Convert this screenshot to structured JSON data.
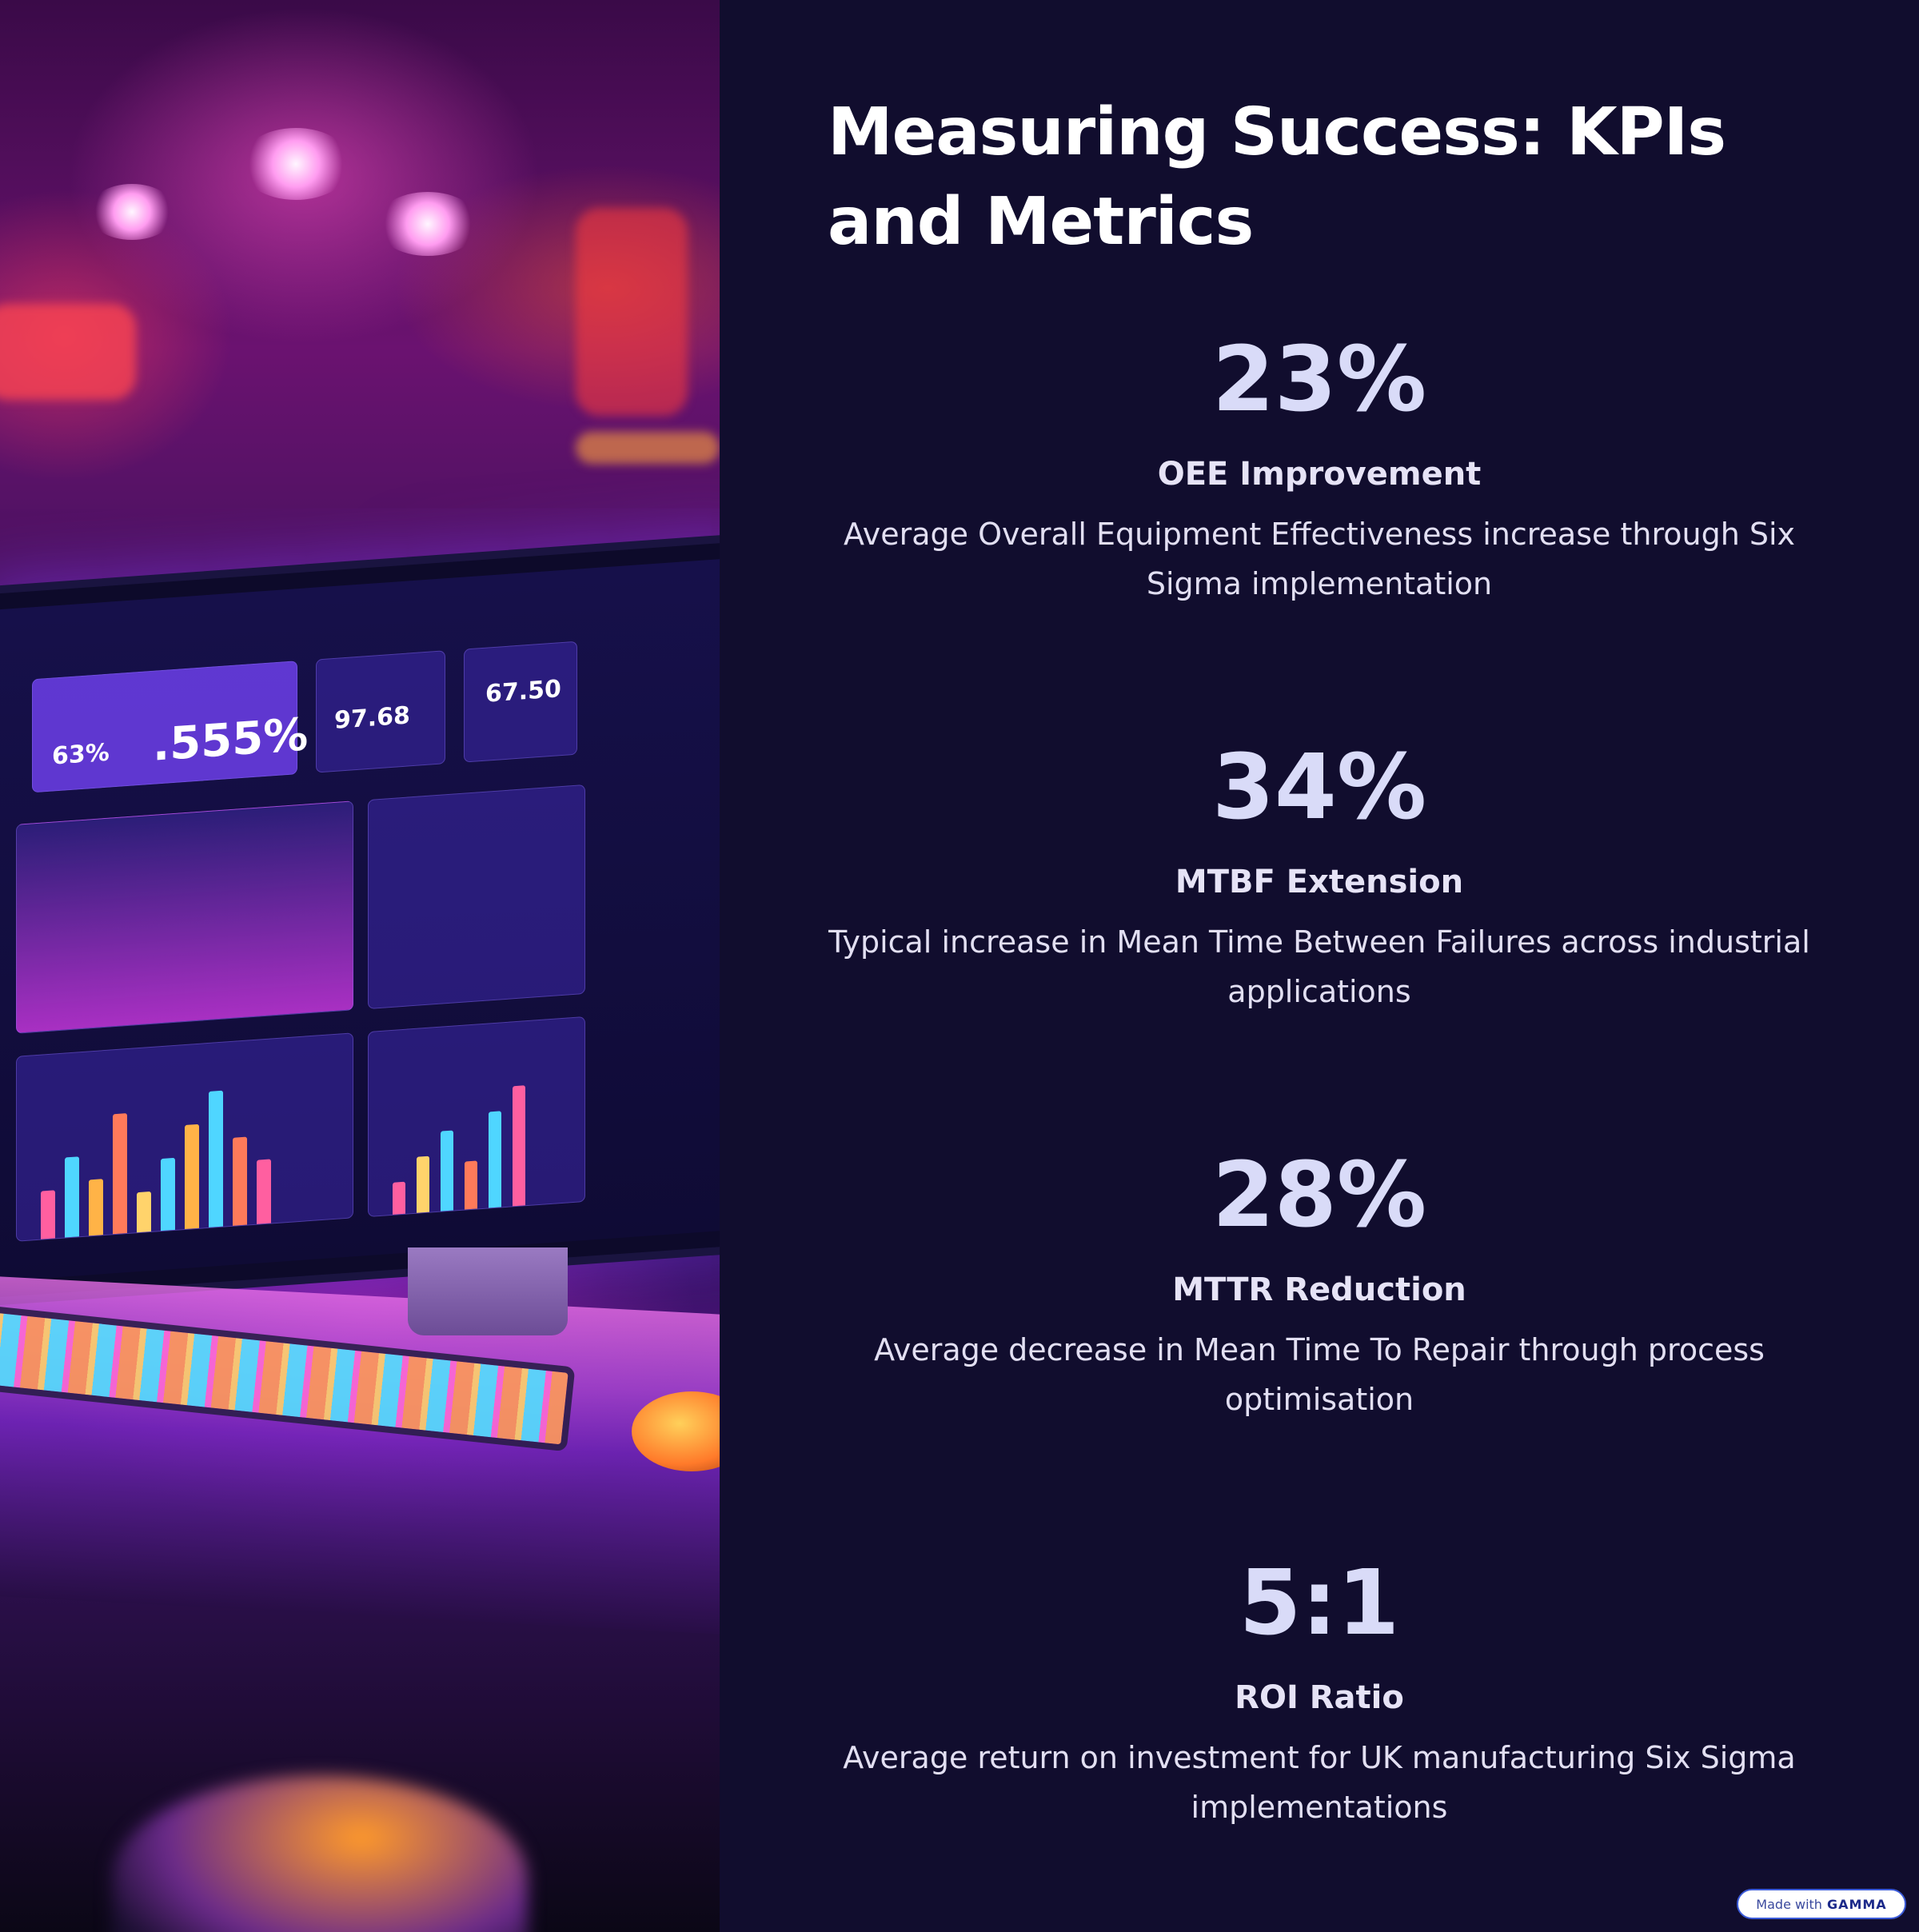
{
  "page": {
    "title": "Measuring Success: KPIs and Metrics"
  },
  "kpis": [
    {
      "value": "23%",
      "label": "OEE Improvement",
      "description": "Average Overall Equipment Effectiveness increase through Six Sigma implementation"
    },
    {
      "value": "34%",
      "label": "MTBF Extension",
      "description": "Typical increase in Mean Time Between Failures across industrial applications"
    },
    {
      "value": "28%",
      "label": "MTTR Reduction",
      "description": "Average decrease in Mean Time To Repair through process optimisation"
    },
    {
      "value": "5:1",
      "label": "ROI Ratio",
      "description": "Average return on investment for UK manufacturing Six Sigma implementations"
    }
  ],
  "hero_image": {
    "screen_values": [
      "63%",
      ".555%",
      "97.68",
      "67.50"
    ]
  },
  "badge": {
    "prefix": "Made with",
    "brand": "GAMMA"
  },
  "colors": {
    "background": "#110d2e",
    "title": "#ffffff",
    "kpi_value": "#d9dbf8",
    "text": "#e2dff2"
  }
}
